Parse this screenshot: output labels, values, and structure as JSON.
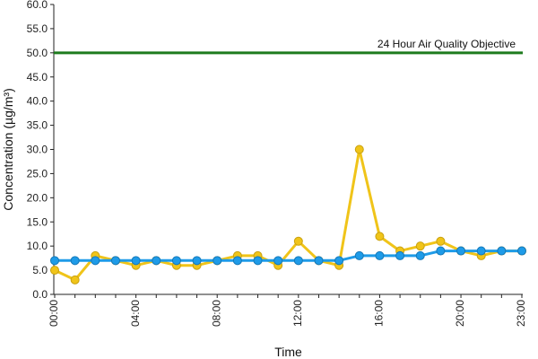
{
  "chart_data": {
    "type": "line",
    "title": "",
    "xlabel": "Time",
    "ylabel": "Concentration (µg/m³)",
    "ylim": [
      0,
      60
    ],
    "y_ticks": [
      "0.0",
      "5.0",
      "10.0",
      "15.0",
      "20.0",
      "25.0",
      "30.0",
      "35.0",
      "40.0",
      "45.0",
      "50.0",
      "55.0",
      "60.0"
    ],
    "x_tick_labels": [
      "00:00",
      "04:00",
      "08:00",
      "12:00",
      "16:00",
      "20:00",
      "23:00"
    ],
    "x_tick_hours": [
      0,
      4,
      8,
      12,
      16,
      20,
      23
    ],
    "x": [
      "00:00",
      "01:00",
      "02:00",
      "03:00",
      "04:00",
      "05:00",
      "06:00",
      "07:00",
      "08:00",
      "09:00",
      "10:00",
      "11:00",
      "12:00",
      "13:00",
      "14:00",
      "15:00",
      "16:00",
      "17:00",
      "18:00",
      "19:00",
      "20:00",
      "21:00",
      "22:00",
      "23:00"
    ],
    "series": [
      {
        "color": "#f0c419",
        "values": [
          5,
          3,
          8,
          7,
          6,
          7,
          6,
          6,
          7,
          8,
          8,
          6,
          11,
          7,
          6,
          30,
          12,
          9,
          10,
          11,
          9,
          8,
          9,
          9
        ]
      },
      {
        "color": "#1e9be8",
        "values": [
          7,
          7,
          7,
          7,
          7,
          7,
          7,
          7,
          7,
          7,
          7,
          7,
          7,
          7,
          7,
          8,
          8,
          8,
          8,
          9,
          9,
          9,
          9,
          9
        ]
      }
    ],
    "reference_line": {
      "value": 50,
      "label": "24 Hour Air Quality Objective",
      "color": "#1e7b1e"
    },
    "grid": false,
    "legend": "none"
  }
}
